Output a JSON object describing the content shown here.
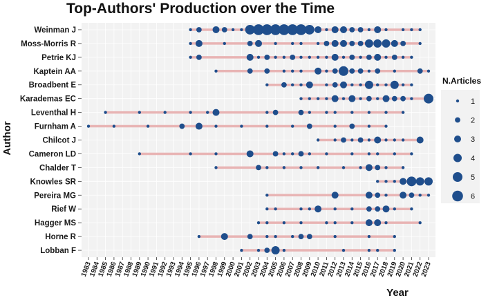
{
  "chart_data": {
    "type": "scatter",
    "title": "Top-Authors' Production over the Time",
    "xlabel": "Year",
    "ylabel": "Author",
    "xlim": [
      1983,
      2023
    ],
    "years": [
      "1983",
      "1984",
      "1985",
      "1986",
      "1987",
      "1988",
      "1989",
      "1990",
      "1991",
      "1992",
      "1993",
      "1994",
      "1995",
      "1996",
      "1997",
      "1998",
      "1999",
      "2000",
      "2001",
      "2002",
      "2003",
      "2004",
      "2005",
      "2006",
      "2007",
      "2008",
      "2009",
      "2010",
      "2011",
      "2012",
      "2013",
      "2014",
      "2015",
      "2016",
      "2017",
      "2018",
      "2019",
      "2020",
      "2021",
      "2022",
      "2023"
    ],
    "legend": {
      "title": "N.Articles",
      "values": [
        "1",
        "2",
        "3",
        "4",
        "5",
        "6"
      ],
      "position": "right"
    },
    "colors": {
      "point": "#1f4e8c",
      "line": "#e8b4b4",
      "panel": "#f2f2f2",
      "grid": "#ffffff"
    },
    "grid": true,
    "authors": [
      {
        "name": "Weinman J",
        "start": 1995,
        "end": 2022,
        "points": [
          [
            1995,
            1
          ],
          [
            1996,
            2
          ],
          [
            1998,
            3
          ],
          [
            1999,
            2
          ],
          [
            2000,
            1
          ],
          [
            2001,
            1
          ],
          [
            2002,
            5
          ],
          [
            2003,
            6
          ],
          [
            2004,
            6
          ],
          [
            2005,
            6
          ],
          [
            2006,
            6
          ],
          [
            2007,
            6
          ],
          [
            2008,
            6
          ],
          [
            2009,
            5
          ],
          [
            2010,
            3
          ],
          [
            2011,
            1
          ],
          [
            2012,
            3
          ],
          [
            2013,
            3
          ],
          [
            2014,
            2
          ],
          [
            2015,
            2
          ],
          [
            2016,
            1
          ],
          [
            2017,
            3
          ],
          [
            2018,
            1
          ],
          [
            2020,
            1
          ],
          [
            2021,
            1
          ],
          [
            2022,
            1
          ]
        ]
      },
      {
        "name": "Moss-Morris R",
        "start": 1995,
        "end": 2022,
        "points": [
          [
            1995,
            1
          ],
          [
            1996,
            3
          ],
          [
            1999,
            1
          ],
          [
            2002,
            2
          ],
          [
            2003,
            3
          ],
          [
            2005,
            1
          ],
          [
            2007,
            1
          ],
          [
            2008,
            1
          ],
          [
            2010,
            1
          ],
          [
            2011,
            2
          ],
          [
            2012,
            3
          ],
          [
            2013,
            3
          ],
          [
            2014,
            2
          ],
          [
            2015,
            2
          ],
          [
            2016,
            4
          ],
          [
            2017,
            4
          ],
          [
            2018,
            4
          ],
          [
            2019,
            3
          ],
          [
            2020,
            2
          ],
          [
            2022,
            1
          ]
        ]
      },
      {
        "name": "Petrie KJ",
        "start": 1995,
        "end": 2021,
        "points": [
          [
            1995,
            1
          ],
          [
            1996,
            2
          ],
          [
            2002,
            3
          ],
          [
            2003,
            1
          ],
          [
            2004,
            2
          ],
          [
            2005,
            1
          ],
          [
            2006,
            1
          ],
          [
            2007,
            2
          ],
          [
            2008,
            1
          ],
          [
            2009,
            1
          ],
          [
            2010,
            1
          ],
          [
            2011,
            1
          ],
          [
            2012,
            3
          ],
          [
            2013,
            1
          ],
          [
            2014,
            2
          ],
          [
            2015,
            1
          ],
          [
            2016,
            2
          ],
          [
            2017,
            3
          ],
          [
            2018,
            1
          ],
          [
            2019,
            2
          ],
          [
            2020,
            1
          ],
          [
            2021,
            1
          ]
        ]
      },
      {
        "name": "Kaptein AA",
        "start": 1998,
        "end": 2023,
        "points": [
          [
            1998,
            1
          ],
          [
            2002,
            2
          ],
          [
            2004,
            2
          ],
          [
            2006,
            1
          ],
          [
            2007,
            1
          ],
          [
            2008,
            1
          ],
          [
            2010,
            3
          ],
          [
            2011,
            1
          ],
          [
            2012,
            2
          ],
          [
            2013,
            5
          ],
          [
            2014,
            2
          ],
          [
            2015,
            2
          ],
          [
            2016,
            1
          ],
          [
            2017,
            2
          ],
          [
            2019,
            1
          ],
          [
            2022,
            2
          ],
          [
            2023,
            1
          ]
        ]
      },
      {
        "name": "Broadbent E",
        "start": 2004,
        "end": 2021,
        "points": [
          [
            2004,
            1
          ],
          [
            2006,
            2
          ],
          [
            2007,
            1
          ],
          [
            2008,
            1
          ],
          [
            2009,
            3
          ],
          [
            2011,
            1
          ],
          [
            2012,
            2
          ],
          [
            2013,
            3
          ],
          [
            2014,
            1
          ],
          [
            2015,
            1
          ],
          [
            2016,
            4
          ],
          [
            2017,
            1
          ],
          [
            2018,
            1
          ],
          [
            2019,
            4
          ],
          [
            2020,
            1
          ],
          [
            2021,
            1
          ]
        ]
      },
      {
        "name": "Karademas EC",
        "start": 2008,
        "end": 2023,
        "points": [
          [
            2008,
            1
          ],
          [
            2009,
            1
          ],
          [
            2010,
            1
          ],
          [
            2011,
            1
          ],
          [
            2012,
            3
          ],
          [
            2013,
            1
          ],
          [
            2014,
            3
          ],
          [
            2015,
            1
          ],
          [
            2016,
            2
          ],
          [
            2017,
            1
          ],
          [
            2018,
            3
          ],
          [
            2019,
            2
          ],
          [
            2020,
            2
          ],
          [
            2021,
            1
          ],
          [
            2023,
            5
          ]
        ]
      },
      {
        "name": "Leventhal H",
        "start": 1985,
        "end": 2020,
        "points": [
          [
            1985,
            1
          ],
          [
            1989,
            1
          ],
          [
            1992,
            1
          ],
          [
            1995,
            1
          ],
          [
            1997,
            1
          ],
          [
            1998,
            3
          ],
          [
            2004,
            1
          ],
          [
            2005,
            2
          ],
          [
            2008,
            2
          ],
          [
            2009,
            1
          ],
          [
            2011,
            1
          ],
          [
            2012,
            1
          ],
          [
            2014,
            1
          ],
          [
            2016,
            1
          ],
          [
            2018,
            1
          ],
          [
            2020,
            1
          ]
        ]
      },
      {
        "name": "Furnham A",
        "start": 1983,
        "end": 2018,
        "points": [
          [
            1983,
            1
          ],
          [
            1986,
            1
          ],
          [
            1990,
            1
          ],
          [
            1994,
            2
          ],
          [
            1996,
            3
          ],
          [
            1998,
            1
          ],
          [
            2001,
            1
          ],
          [
            2004,
            1
          ],
          [
            2007,
            1
          ],
          [
            2009,
            2
          ],
          [
            2012,
            1
          ],
          [
            2014,
            2
          ],
          [
            2016,
            1
          ],
          [
            2018,
            1
          ]
        ]
      },
      {
        "name": "Chilcot J",
        "start": 2010,
        "end": 2022,
        "points": [
          [
            2010,
            1
          ],
          [
            2012,
            1
          ],
          [
            2013,
            2
          ],
          [
            2014,
            1
          ],
          [
            2015,
            2
          ],
          [
            2016,
            1
          ],
          [
            2017,
            3
          ],
          [
            2018,
            1
          ],
          [
            2019,
            1
          ],
          [
            2020,
            1
          ],
          [
            2022,
            3
          ]
        ]
      },
      {
        "name": "Cameron LD",
        "start": 1989,
        "end": 2021,
        "points": [
          [
            1989,
            1
          ],
          [
            1995,
            1
          ],
          [
            1998,
            1
          ],
          [
            2002,
            3
          ],
          [
            2005,
            2
          ],
          [
            2006,
            1
          ],
          [
            2007,
            1
          ],
          [
            2008,
            2
          ],
          [
            2009,
            1
          ],
          [
            2011,
            1
          ],
          [
            2014,
            1
          ],
          [
            2016,
            1
          ],
          [
            2017,
            1
          ],
          [
            2019,
            1
          ],
          [
            2021,
            1
          ]
        ]
      },
      {
        "name": "Chalder T",
        "start": 1998,
        "end": 2020,
        "points": [
          [
            1998,
            1
          ],
          [
            2003,
            2
          ],
          [
            2004,
            1
          ],
          [
            2006,
            1
          ],
          [
            2008,
            1
          ],
          [
            2010,
            1
          ],
          [
            2013,
            1
          ],
          [
            2015,
            1
          ],
          [
            2016,
            3
          ],
          [
            2017,
            2
          ],
          [
            2018,
            1
          ],
          [
            2020,
            1
          ]
        ]
      },
      {
        "name": "Knowles SR",
        "start": 2017,
        "end": 2023,
        "points": [
          [
            2017,
            1
          ],
          [
            2018,
            1
          ],
          [
            2019,
            1
          ],
          [
            2020,
            3
          ],
          [
            2021,
            5
          ],
          [
            2022,
            4
          ],
          [
            2023,
            4
          ]
        ]
      },
      {
        "name": "Pereira MG",
        "start": 2004,
        "end": 2023,
        "points": [
          [
            2004,
            1
          ],
          [
            2012,
            3
          ],
          [
            2016,
            3
          ],
          [
            2017,
            2
          ],
          [
            2018,
            1
          ],
          [
            2020,
            3
          ],
          [
            2021,
            2
          ],
          [
            2022,
            1
          ],
          [
            2023,
            1
          ]
        ]
      },
      {
        "name": "Rief W",
        "start": 2004,
        "end": 2021,
        "points": [
          [
            2004,
            1
          ],
          [
            2005,
            1
          ],
          [
            2008,
            1
          ],
          [
            2009,
            1
          ],
          [
            2010,
            3
          ],
          [
            2012,
            1
          ],
          [
            2014,
            1
          ],
          [
            2016,
            2
          ],
          [
            2017,
            2
          ],
          [
            2018,
            3
          ],
          [
            2019,
            1
          ],
          [
            2021,
            1
          ]
        ]
      },
      {
        "name": "Hagger MS",
        "start": 2003,
        "end": 2022,
        "points": [
          [
            2003,
            1
          ],
          [
            2004,
            1
          ],
          [
            2006,
            1
          ],
          [
            2008,
            1
          ],
          [
            2011,
            1
          ],
          [
            2012,
            1
          ],
          [
            2014,
            1
          ],
          [
            2016,
            3
          ],
          [
            2017,
            3
          ],
          [
            2018,
            1
          ],
          [
            2022,
            1
          ]
        ]
      },
      {
        "name": "Horne R",
        "start": 1996,
        "end": 2019,
        "points": [
          [
            1996,
            1
          ],
          [
            1999,
            3
          ],
          [
            2002,
            2
          ],
          [
            2004,
            1
          ],
          [
            2005,
            1
          ],
          [
            2007,
            1
          ],
          [
            2008,
            2
          ],
          [
            2009,
            2
          ],
          [
            2012,
            1
          ],
          [
            2016,
            1
          ],
          [
            2019,
            1
          ]
        ]
      },
      {
        "name": "Lobban F",
        "start": 2001,
        "end": 2019,
        "points": [
          [
            2001,
            1
          ],
          [
            2003,
            1
          ],
          [
            2004,
            2
          ],
          [
            2005,
            4
          ],
          [
            2006,
            1
          ],
          [
            2013,
            1
          ],
          [
            2016,
            1
          ],
          [
            2017,
            1
          ],
          [
            2019,
            1
          ]
        ]
      }
    ]
  }
}
